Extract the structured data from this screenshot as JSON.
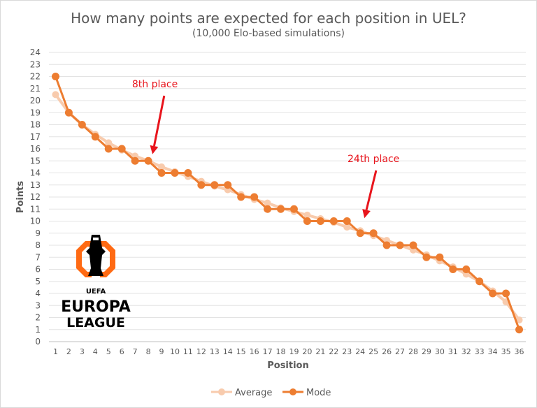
{
  "chart_data": {
    "type": "line",
    "title": "How many points are expected for each position in UEL?",
    "subtitle": "(10,000 Elo-based simulations)",
    "xlabel": "Position",
    "ylabel": "Points",
    "ylim": [
      0,
      24
    ],
    "categories": [
      "1",
      "2",
      "3",
      "4",
      "5",
      "6",
      "7",
      "8",
      "9",
      "10",
      "11",
      "12",
      "13",
      "14",
      "15",
      "16",
      "17",
      "18",
      "19",
      "20",
      "21",
      "22",
      "23",
      "24",
      "25",
      "26",
      "27",
      "28",
      "29",
      "30",
      "31",
      "32",
      "33",
      "34",
      "35",
      "36"
    ],
    "series": [
      {
        "name": "Average",
        "color": "#f8cbad",
        "values": [
          20.5,
          19.0,
          18.0,
          17.2,
          16.5,
          15.9,
          15.4,
          15.0,
          14.5,
          14.1,
          13.7,
          13.3,
          12.9,
          12.6,
          12.2,
          11.8,
          11.5,
          11.1,
          10.8,
          10.5,
          10.2,
          9.9,
          9.5,
          9.2,
          8.8,
          8.4,
          8.0,
          7.6,
          7.2,
          6.7,
          6.2,
          5.6,
          5.0,
          4.2,
          3.3,
          1.8
        ]
      },
      {
        "name": "Mode",
        "color": "#ed7d31",
        "values": [
          22,
          19,
          18,
          17,
          16,
          16,
          15,
          15,
          14,
          14,
          14,
          13,
          13,
          13,
          12,
          12,
          11,
          11,
          11,
          10,
          10,
          10,
          10,
          9,
          9,
          8,
          8,
          8,
          7,
          7,
          6,
          6,
          5,
          4,
          4,
          1
        ]
      }
    ],
    "annotations": [
      {
        "text": "8th place",
        "x": 8,
        "y": 15.2,
        "label_y": 21.1,
        "label_dx": 0.5
      },
      {
        "text": "24th place",
        "x": 24,
        "y": 9.9,
        "label_y": 14.9,
        "label_dx": 1.0
      }
    ],
    "grid": true,
    "legend": "bottom"
  },
  "logo": {
    "line1": "UEFA",
    "line2": "EUROPA",
    "line3": "LEAGUE"
  }
}
